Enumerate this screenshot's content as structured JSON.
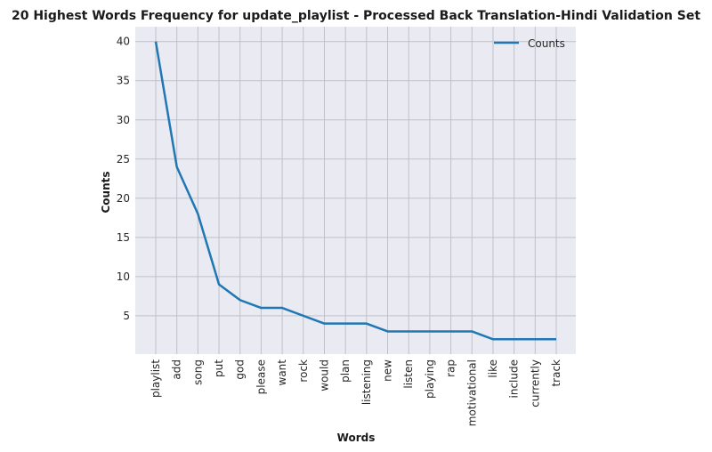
{
  "chart_data": {
    "type": "line",
    "title": "20 Highest Words Frequency for update_playlist - Processed Back Translation-Hindi Validation Set",
    "xlabel": "Words",
    "ylabel": "Counts",
    "categories": [
      "playlist",
      "add",
      "song",
      "put",
      "god",
      "please",
      "want",
      "rock",
      "would",
      "plan",
      "listening",
      "new",
      "listen",
      "playing",
      "rap",
      "motivational",
      "like",
      "include",
      "currently",
      "track"
    ],
    "series": [
      {
        "name": "Counts",
        "values": [
          40,
          24,
          18,
          9,
          7,
          6,
          6,
          5,
          4,
          4,
          4,
          3,
          3,
          3,
          3,
          3,
          2,
          2,
          2,
          2
        ],
        "color": "#1f77b4"
      }
    ],
    "yticks": [
      5,
      10,
      15,
      20,
      25,
      30,
      35,
      40
    ],
    "ylim": [
      0.1,
      41.9
    ],
    "grid": true,
    "legend": "top-right",
    "colors": {
      "background": "#eaeaf2",
      "grid": "#c0c0c8"
    }
  }
}
